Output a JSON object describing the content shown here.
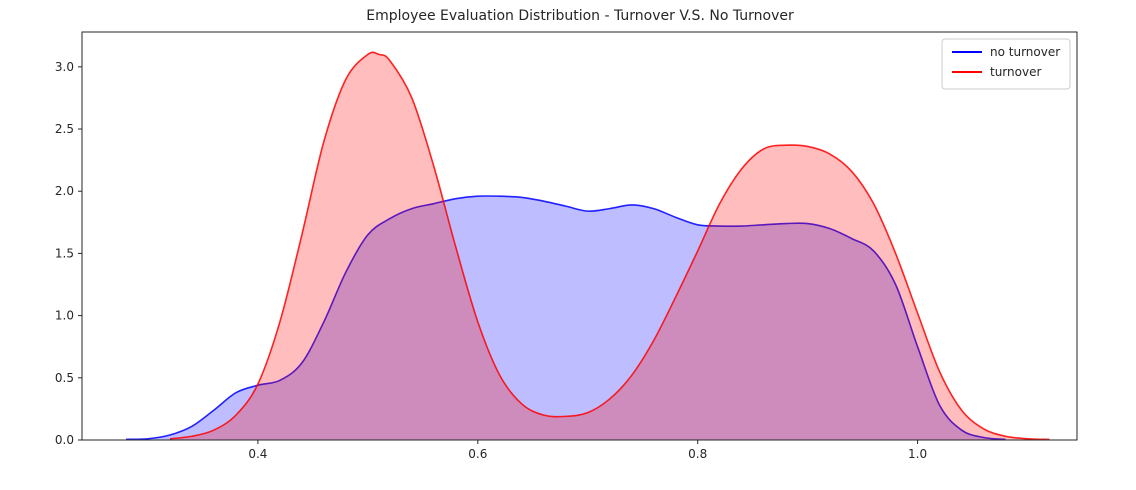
{
  "chart_data": {
    "type": "area",
    "title": "Employee Evaluation Distribution - Turnover V.S. No Turnover",
    "xlabel": "",
    "ylabel": "",
    "xlim": [
      0.24,
      1.145
    ],
    "ylim": [
      0,
      3.28
    ],
    "x_ticks": [
      0.4,
      0.6,
      0.8,
      1.0
    ],
    "x_tick_labels": [
      "0.4",
      "0.6",
      "0.8",
      "1.0"
    ],
    "y_ticks": [
      0.0,
      0.5,
      1.0,
      1.5,
      2.0,
      2.5,
      3.0
    ],
    "y_tick_labels": [
      "0.0",
      "0.5",
      "1.0",
      "1.5",
      "2.0",
      "2.5",
      "3.0"
    ],
    "grid": false,
    "legend": "top-right",
    "series": [
      {
        "name": "no turnover",
        "color": "#0000ff",
        "fill": "#b3b3ff",
        "x": [
          0.28,
          0.3,
          0.32,
          0.34,
          0.36,
          0.38,
          0.4,
          0.42,
          0.44,
          0.46,
          0.48,
          0.5,
          0.52,
          0.54,
          0.56,
          0.58,
          0.6,
          0.62,
          0.64,
          0.66,
          0.68,
          0.7,
          0.72,
          0.74,
          0.76,
          0.78,
          0.8,
          0.82,
          0.84,
          0.86,
          0.88,
          0.9,
          0.92,
          0.94,
          0.96,
          0.98,
          1.0,
          1.02,
          1.04,
          1.06,
          1.08
        ],
        "values": [
          0.005,
          0.01,
          0.04,
          0.11,
          0.24,
          0.38,
          0.44,
          0.48,
          0.62,
          0.95,
          1.35,
          1.65,
          1.78,
          1.86,
          1.9,
          1.94,
          1.96,
          1.96,
          1.95,
          1.92,
          1.88,
          1.84,
          1.86,
          1.89,
          1.86,
          1.79,
          1.73,
          1.72,
          1.72,
          1.73,
          1.74,
          1.74,
          1.7,
          1.62,
          1.52,
          1.25,
          0.75,
          0.28,
          0.08,
          0.02,
          0.005
        ]
      },
      {
        "name": "turnover",
        "color": "#ff0000",
        "fill": "#ffb3b3",
        "x": [
          0.32,
          0.34,
          0.36,
          0.38,
          0.4,
          0.42,
          0.44,
          0.46,
          0.48,
          0.5,
          0.51,
          0.52,
          0.54,
          0.56,
          0.58,
          0.6,
          0.62,
          0.64,
          0.66,
          0.68,
          0.7,
          0.72,
          0.74,
          0.76,
          0.78,
          0.8,
          0.82,
          0.84,
          0.86,
          0.88,
          0.9,
          0.92,
          0.94,
          0.96,
          0.98,
          1.0,
          1.02,
          1.04,
          1.06,
          1.08,
          1.1,
          1.12
        ],
        "values": [
          0.01,
          0.03,
          0.08,
          0.2,
          0.45,
          0.95,
          1.65,
          2.4,
          2.9,
          3.1,
          3.1,
          3.05,
          2.75,
          2.2,
          1.55,
          0.95,
          0.52,
          0.29,
          0.2,
          0.19,
          0.22,
          0.33,
          0.52,
          0.8,
          1.15,
          1.52,
          1.9,
          2.18,
          2.34,
          2.37,
          2.36,
          2.3,
          2.16,
          1.9,
          1.5,
          1.02,
          0.55,
          0.24,
          0.09,
          0.03,
          0.01,
          0.005
        ]
      }
    ]
  }
}
